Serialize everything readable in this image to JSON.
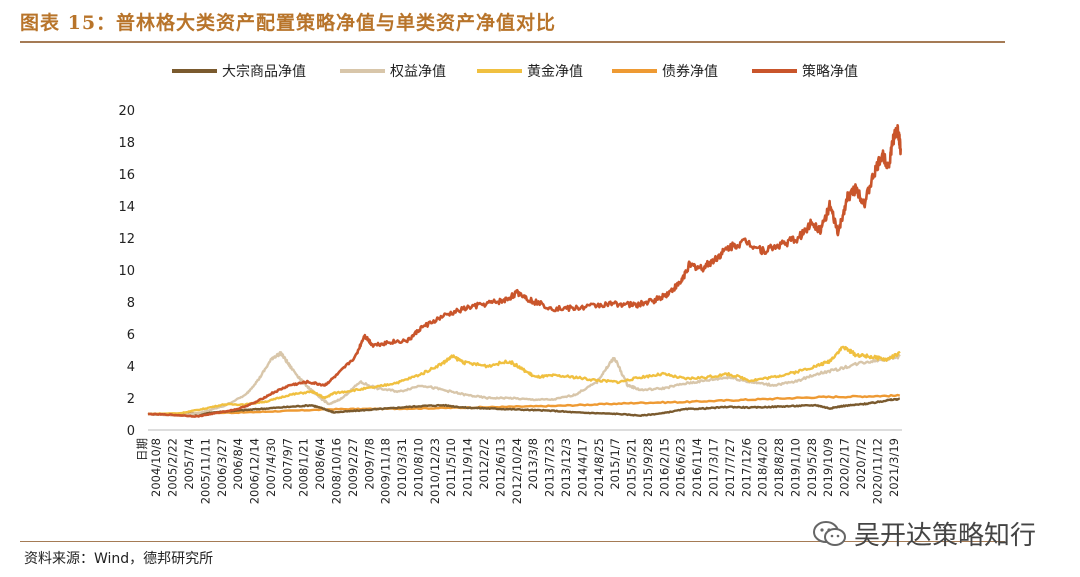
{
  "header": {
    "title": "图表 15：普林格大类资产配置策略净值与单类资产净值对比"
  },
  "footer": {
    "source": "资料来源：Wind，德邦研究所"
  },
  "watermark": {
    "text": "吴开达策略知行"
  },
  "colors": {
    "commodity": "#7a5a2e",
    "equity": "#d8c6aa",
    "gold": "#f0c040",
    "bond": "#ee9a33",
    "strategy": "#c9552b",
    "title": "#b8742a",
    "rule": "#a57b55"
  },
  "chart_data": {
    "type": "line",
    "title": "",
    "xlabel": "",
    "ylabel": "",
    "ylim": [
      0,
      20
    ],
    "yticks": [
      0,
      2,
      4,
      6,
      8,
      10,
      12,
      14,
      16,
      18,
      20
    ],
    "x_axis_first_label": "日期",
    "x_ticks": [
      "2004/10/8",
      "2005/2/22",
      "2005/7/4",
      "2005/11/11",
      "2006/3/27",
      "2006/8/4",
      "2006/12/14",
      "2007/4/30",
      "2007/9/7",
      "2008/1/21",
      "2008/6/4",
      "2008/10/16",
      "2009/2/27",
      "2009/7/8",
      "2009/11/18",
      "2010/3/31",
      "2010/8/10",
      "2010/12/23",
      "2011/5/10",
      "2011/9/14",
      "2012/2/2",
      "2012/6/13",
      "2012/10/24",
      "2013/3/8",
      "2013/7/23",
      "2013/12/3",
      "2014/4/17",
      "2014/8/25",
      "2015/1/7",
      "2015/5/21",
      "2015/9/28",
      "2016/2/15",
      "2016/6/23",
      "2016/11/4",
      "2017/3/17",
      "2017/7/27",
      "2017/12/6",
      "2018/4/20",
      "2018/8/28",
      "2019/1/10",
      "2019/5/28",
      "2019/10/9",
      "2020/2/17",
      "2020/7/2",
      "2020/11/12",
      "2021/3/19"
    ],
    "x_range": [
      2004.77,
      2021.95
    ],
    "series": [
      {
        "name": "大宗商品净值",
        "color_key": "commodity",
        "x": [
          2004.77,
          2005.5,
          2006.0,
          2006.5,
          2007.0,
          2007.5,
          2008.0,
          2008.5,
          2008.8,
          2009.0,
          2009.5,
          2010.0,
          2010.5,
          2011.0,
          2011.5,
          2012.0,
          2012.5,
          2013.0,
          2013.5,
          2014.0,
          2014.5,
          2015.0,
          2015.5,
          2016.0,
          2016.5,
          2017.0,
          2017.5,
          2018.0,
          2018.5,
          2019.0,
          2019.5,
          2020.0,
          2020.3,
          2020.6,
          2021.0,
          2021.3,
          2021.6,
          2021.9
        ],
        "values": [
          1.0,
          0.95,
          1.05,
          1.15,
          1.25,
          1.35,
          1.45,
          1.55,
          1.3,
          1.1,
          1.2,
          1.3,
          1.4,
          1.5,
          1.55,
          1.4,
          1.35,
          1.3,
          1.25,
          1.2,
          1.1,
          1.05,
          1.0,
          0.9,
          1.05,
          1.3,
          1.35,
          1.45,
          1.4,
          1.45,
          1.5,
          1.55,
          1.35,
          1.5,
          1.6,
          1.7,
          1.85,
          1.95
        ]
      },
      {
        "name": "权益净值",
        "color_key": "equity",
        "x": [
          2004.77,
          2005.5,
          2006.0,
          2006.5,
          2007.0,
          2007.3,
          2007.6,
          2007.8,
          2008.0,
          2008.3,
          2008.6,
          2008.9,
          2009.2,
          2009.6,
          2010.0,
          2010.5,
          2011.0,
          2011.5,
          2012.0,
          2012.5,
          2013.0,
          2013.5,
          2014.0,
          2014.5,
          2015.0,
          2015.3,
          2015.4,
          2015.7,
          2016.0,
          2016.5,
          2017.0,
          2017.5,
          2018.0,
          2018.5,
          2019.0,
          2019.5,
          2020.0,
          2020.5,
          2021.0,
          2021.5,
          2021.9
        ],
        "values": [
          1.0,
          0.9,
          1.1,
          1.5,
          2.2,
          3.2,
          4.5,
          4.8,
          4.0,
          3.0,
          2.2,
          1.6,
          2.0,
          3.0,
          2.6,
          2.4,
          2.8,
          2.5,
          2.2,
          2.0,
          2.0,
          1.9,
          1.9,
          2.2,
          3.0,
          4.2,
          4.5,
          2.8,
          2.5,
          2.6,
          2.9,
          3.1,
          3.3,
          3.0,
          2.8,
          3.0,
          3.5,
          3.8,
          4.2,
          4.4,
          4.6
        ]
      },
      {
        "name": "黄金净值",
        "color_key": "gold",
        "x": [
          2004.77,
          2005.5,
          2006.0,
          2006.5,
          2007.0,
          2007.5,
          2008.0,
          2008.5,
          2008.8,
          2009.0,
          2009.5,
          2010.0,
          2010.5,
          2011.0,
          2011.5,
          2011.7,
          2012.0,
          2012.5,
          2013.0,
          2013.3,
          2013.6,
          2014.0,
          2014.5,
          2015.0,
          2015.5,
          2016.0,
          2016.5,
          2017.0,
          2017.5,
          2018.0,
          2018.5,
          2019.0,
          2019.5,
          2020.0,
          2020.3,
          2020.6,
          2020.9,
          2021.2,
          2021.6,
          2021.9
        ],
        "values": [
          1.0,
          1.05,
          1.3,
          1.6,
          1.6,
          1.8,
          2.2,
          2.4,
          2.0,
          2.3,
          2.5,
          2.7,
          3.0,
          3.5,
          4.2,
          4.6,
          4.2,
          4.0,
          4.3,
          3.8,
          3.3,
          3.4,
          3.3,
          3.1,
          3.0,
          3.3,
          3.5,
          3.2,
          3.3,
          3.5,
          3.1,
          3.3,
          3.6,
          4.0,
          4.3,
          5.2,
          4.7,
          4.6,
          4.4,
          4.8
        ]
      },
      {
        "name": "债券净值",
        "color_key": "bond",
        "x": [
          2004.77,
          2006.0,
          2007.0,
          2008.0,
          2009.0,
          2010.0,
          2011.0,
          2012.0,
          2013.0,
          2014.0,
          2015.0,
          2016.0,
          2017.0,
          2018.0,
          2019.0,
          2020.0,
          2021.0,
          2021.9
        ],
        "values": [
          1.0,
          1.05,
          1.1,
          1.2,
          1.3,
          1.32,
          1.35,
          1.4,
          1.45,
          1.5,
          1.6,
          1.7,
          1.75,
          1.85,
          1.95,
          2.05,
          2.1,
          2.15
        ]
      },
      {
        "name": "策略净值",
        "color_key": "strategy",
        "x": [
          2004.77,
          2005.3,
          2005.9,
          2006.3,
          2006.8,
          2007.2,
          2007.6,
          2008.0,
          2008.4,
          2008.8,
          2009.1,
          2009.5,
          2009.7,
          2009.9,
          2010.3,
          2010.7,
          2011.0,
          2011.5,
          2012.0,
          2012.5,
          2012.9,
          2013.2,
          2013.5,
          2014.0,
          2014.5,
          2015.0,
          2015.5,
          2015.9,
          2016.3,
          2016.6,
          2016.9,
          2017.1,
          2017.4,
          2017.7,
          2018.0,
          2018.4,
          2018.8,
          2019.2,
          2019.6,
          2019.9,
          2020.1,
          2020.3,
          2020.5,
          2020.7,
          2020.9,
          2021.1,
          2021.3,
          2021.5,
          2021.65,
          2021.75,
          2021.85,
          2021.92
        ],
        "values": [
          1.0,
          0.95,
          0.85,
          1.05,
          1.3,
          1.7,
          2.3,
          2.8,
          3.0,
          2.8,
          3.5,
          4.6,
          5.9,
          5.3,
          5.5,
          5.6,
          6.4,
          7.1,
          7.6,
          7.9,
          8.1,
          8.6,
          8.1,
          7.6,
          7.6,
          7.8,
          7.9,
          7.8,
          8.1,
          8.5,
          9.2,
          10.3,
          10.1,
          10.7,
          11.4,
          11.8,
          11.2,
          11.6,
          12.0,
          13.0,
          12.5,
          14.0,
          12.3,
          14.5,
          15.1,
          14.2,
          15.9,
          17.2,
          16.5,
          18.2,
          18.8,
          17.6
        ]
      }
    ]
  }
}
